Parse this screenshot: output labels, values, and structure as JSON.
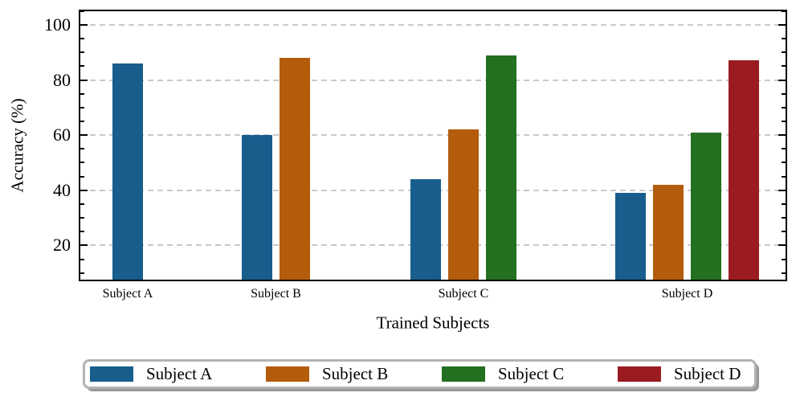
{
  "chart_data": {
    "type": "bar",
    "title": "",
    "xlabel": "Trained Subjects",
    "ylabel": "Accuracy (%)",
    "categories": [
      "Subject A",
      "Subject B",
      "Subject C",
      "Subject D"
    ],
    "series": [
      {
        "name": "Subject A",
        "color": "#185d8c",
        "values": [
          86,
          60,
          44,
          39
        ]
      },
      {
        "name": "Subject B",
        "color": "#b35c0c",
        "values": [
          null,
          88,
          62,
          42
        ]
      },
      {
        "name": "Subject C",
        "color": "#237021",
        "values": [
          null,
          null,
          89,
          61
        ]
      },
      {
        "name": "Subject D",
        "color": "#9a1c20",
        "values": [
          null,
          null,
          null,
          87
        ]
      }
    ],
    "ylim": [
      7,
      105.5
    ],
    "yticks": [
      20,
      40,
      60,
      80,
      100
    ],
    "minor_tick_step": 5,
    "grid": {
      "axis": "y",
      "style": "dashed",
      "color": "#c9c9c9"
    },
    "legend": {
      "position": "bottom",
      "labels": [
        "Subject A",
        "Subject B",
        "Subject C",
        "Subject D"
      ],
      "border_color": "#b3b3b3",
      "shadow_color": "#999999"
    },
    "spine_color": "#000000"
  }
}
